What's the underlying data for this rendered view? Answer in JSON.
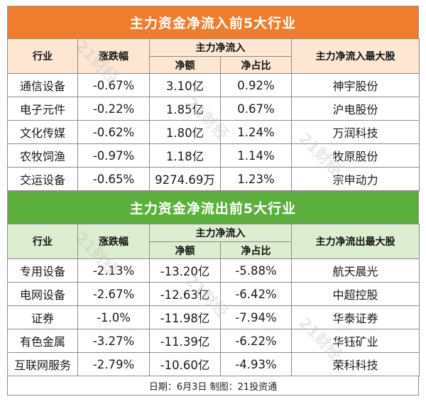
{
  "inflow": {
    "title": "主力资金净流入前5大行业",
    "headers": {
      "industry": "行业",
      "change": "涨跌幅",
      "group": "主力净流入",
      "net_amount": "净额",
      "net_ratio": "净占比",
      "top_stock": "主力净流入最大股"
    },
    "rows": [
      {
        "industry": "通信设备",
        "change": "-0.67%",
        "net_amount": "3.10亿",
        "net_ratio": "0.92%",
        "top_stock": "神宇股份"
      },
      {
        "industry": "电子元件",
        "change": "-0.22%",
        "net_amount": "1.85亿",
        "net_ratio": "0.67%",
        "top_stock": "沪电股份"
      },
      {
        "industry": "文化传媒",
        "change": "-0.62%",
        "net_amount": "1.80亿",
        "net_ratio": "1.24%",
        "top_stock": "万润科技"
      },
      {
        "industry": "农牧饲渔",
        "change": "-0.97%",
        "net_amount": "1.18亿",
        "net_ratio": "1.14%",
        "top_stock": "牧原股份"
      },
      {
        "industry": "交运设备",
        "change": "-0.65%",
        "net_amount": "9274.69万",
        "net_ratio": "1.23%",
        "top_stock": "宗申动力"
      }
    ]
  },
  "outflow": {
    "title": "主力资金净流出前5大行业",
    "headers": {
      "industry": "行业",
      "change": "涨跌幅",
      "group": "主力净流入",
      "net_amount": "净额",
      "net_ratio": "净占比",
      "top_stock": "主力净流出最大股"
    },
    "rows": [
      {
        "industry": "专用设备",
        "change": "-2.13%",
        "net_amount": "-13.20亿",
        "net_ratio": "-5.88%",
        "top_stock": "航天晨光"
      },
      {
        "industry": "电网设备",
        "change": "-2.67%",
        "net_amount": "-12.63亿",
        "net_ratio": "-6.42%",
        "top_stock": "中超控股"
      },
      {
        "industry": "证券",
        "change": "-1.0%",
        "net_amount": "-11.98亿",
        "net_ratio": "-7.94%",
        "top_stock": "华泰证券"
      },
      {
        "industry": "有色金属",
        "change": "-3.27%",
        "net_amount": "-11.39亿",
        "net_ratio": "-6.22%",
        "top_stock": "华钰矿业"
      },
      {
        "industry": "互联网服务",
        "change": "-2.79%",
        "net_amount": "-10.60亿",
        "net_ratio": "-4.93%",
        "top_stock": "荣科科技"
      }
    ]
  },
  "footer": "日期：6月3日 制图：21投资通",
  "watermark": "21财经",
  "colors": {
    "inflow_title_bg": "#ef7d2d",
    "inflow_header_bg": "#fde7d3",
    "outflow_title_bg": "#5cae3d",
    "outflow_header_bg": "#dceecf"
  }
}
